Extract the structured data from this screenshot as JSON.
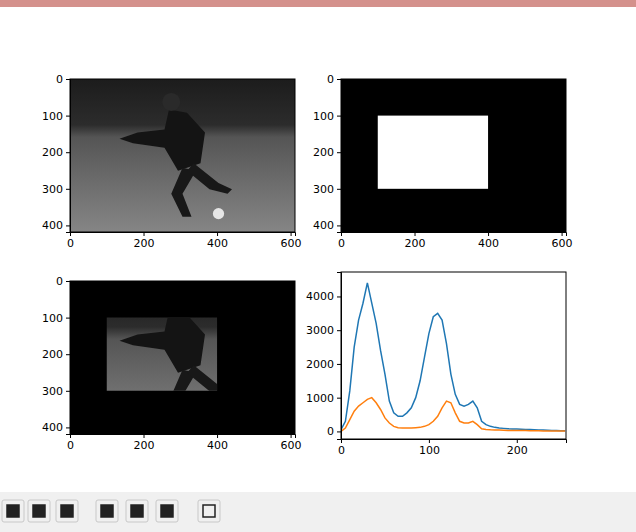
{
  "chart_data": [
    {
      "type": "image",
      "xlim": [
        0,
        612
      ],
      "ylim": [
        418,
        0
      ],
      "xticks": [
        0,
        200,
        400,
        600
      ],
      "yticks": [
        0,
        100,
        200,
        300,
        400
      ]
    },
    {
      "type": "mask",
      "xlim": [
        0,
        612
      ],
      "ylim": [
        418,
        0
      ],
      "xticks": [
        0,
        200,
        400,
        600
      ],
      "yticks": [
        0,
        100,
        200,
        300,
        400
      ],
      "mask_rect": {
        "x": [
          100,
          400
        ],
        "y": [
          100,
          300
        ]
      }
    },
    {
      "type": "masked",
      "xlim": [
        0,
        612
      ],
      "ylim": [
        418,
        0
      ],
      "xticks": [
        0,
        200,
        400,
        600
      ],
      "yticks": [
        0,
        100,
        200,
        300,
        400
      ],
      "mask_rect": {
        "x": [
          100,
          400
        ],
        "y": [
          100,
          300
        ]
      }
    },
    {
      "type": "line",
      "xlim": [
        0,
        256
      ],
      "ylim": [
        -225,
        4725
      ],
      "xticks": [
        0,
        100,
        200
      ],
      "yticks": [
        0,
        1000,
        2000,
        3000,
        4000
      ],
      "x": [
        0,
        5,
        10,
        15,
        20,
        25,
        30,
        35,
        40,
        45,
        50,
        55,
        60,
        65,
        70,
        75,
        80,
        85,
        90,
        95,
        100,
        105,
        110,
        115,
        120,
        125,
        130,
        135,
        140,
        145,
        150,
        155,
        160,
        165,
        170,
        175,
        180,
        185,
        190,
        195,
        200,
        205,
        210,
        215,
        220,
        225,
        230,
        235,
        240,
        245,
        250,
        255
      ],
      "series": [
        {
          "color": "#1f77b4",
          "values": [
            50,
            300,
            1200,
            2500,
            3300,
            3800,
            4400,
            3800,
            3200,
            2400,
            1700,
            900,
            550,
            450,
            450,
            550,
            700,
            1000,
            1500,
            2200,
            2900,
            3400,
            3500,
            3300,
            2600,
            1700,
            1100,
            800,
            750,
            800,
            900,
            700,
            300,
            200,
            150,
            120,
            100,
            90,
            80,
            75,
            70,
            65,
            60,
            55,
            50,
            45,
            40,
            35,
            30,
            25,
            20,
            20
          ]
        },
        {
          "color": "#ff7f0e",
          "values": [
            0,
            100,
            350,
            600,
            750,
            850,
            950,
            1000,
            850,
            650,
            400,
            250,
            150,
            110,
            100,
            100,
            100,
            110,
            120,
            150,
            200,
            300,
            450,
            700,
            900,
            850,
            550,
            300,
            250,
            250,
            300,
            200,
            80,
            60,
            50,
            45,
            40,
            35,
            30,
            30,
            30,
            25,
            25,
            20,
            20,
            20,
            15,
            15,
            15,
            10,
            10,
            10
          ]
        }
      ]
    }
  ]
}
